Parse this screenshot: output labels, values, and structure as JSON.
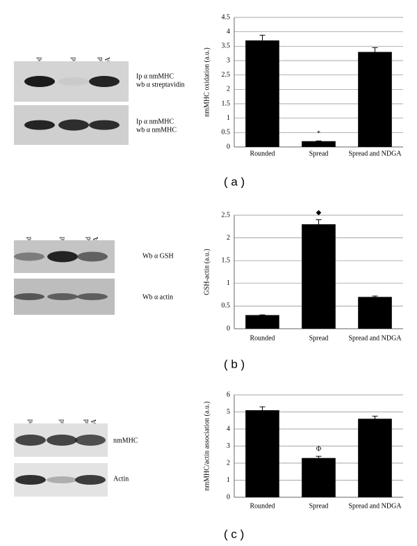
{
  "chart_data": [
    {
      "type": "bar",
      "panel_label": "( a )",
      "y_label": "nmMHC oxidation (a.u.)",
      "categories": [
        "Rounded",
        "Spread",
        "Spread and NDGA"
      ],
      "values": [
        3.7,
        0.2,
        3.3
      ],
      "errors": [
        0.18,
        0.01,
        0.15
      ],
      "color": "#000000",
      "annotations": [
        null,
        "*",
        null
      ],
      "ylim": [
        0,
        4.5
      ],
      "yticks": [
        0,
        0.5,
        1,
        1.5,
        2,
        2.5,
        3,
        3.5,
        4,
        4.5
      ],
      "grid": true
    },
    {
      "type": "bar",
      "panel_label": "( b )",
      "y_label": "GSH-actin (a.u.)",
      "categories": [
        "Rounded",
        "Spread",
        "Spread and NDGA"
      ],
      "values": [
        0.3,
        2.3,
        0.7
      ],
      "errors": [
        0.005,
        0.1,
        0.02
      ],
      "color": "#000000",
      "annotations": [
        null,
        "◆",
        null
      ],
      "ylim": [
        0,
        2.5
      ],
      "yticks": [
        0,
        0.5,
        1,
        1.5,
        2,
        2.5
      ],
      "grid": true
    },
    {
      "type": "bar",
      "panel_label": "( c )",
      "y_label": "nmMHC/actin association (a.u.)",
      "categories": [
        "Rounded",
        "Spread",
        "Spread and NDGA"
      ],
      "values": [
        5.1,
        2.3,
        4.6
      ],
      "errors": [
        0.2,
        0.1,
        0.15
      ],
      "color": "#000000",
      "annotations": [
        null,
        "Φ",
        null
      ],
      "ylim": [
        0,
        6
      ],
      "yticks": [
        0,
        1,
        2,
        3,
        4,
        5,
        6
      ],
      "grid": true
    }
  ],
  "blots": [
    {
      "lanes": [
        [
          "Rounded"
        ],
        [
          "Spread"
        ],
        [
          "Spread",
          "+ NDGA"
        ]
      ],
      "rows": [
        [
          "Ip α nmMHC",
          "wb α streptavidin"
        ],
        [
          "Ip α nmMHC",
          "wb α nmMHC"
        ]
      ]
    },
    {
      "lanes": [
        [
          "Rounded"
        ],
        [
          "Spread"
        ],
        [
          "Spread",
          "+ NDGA"
        ]
      ],
      "rows": [
        [
          "Wb α GSH"
        ],
        [
          "Wb α actin"
        ]
      ]
    },
    {
      "lanes": [
        [
          "Rounded"
        ],
        [
          "Spread"
        ],
        [
          "Spread",
          "+ NDGA"
        ]
      ],
      "rows": [
        [
          "nmMHC"
        ],
        [
          "Actin"
        ]
      ]
    }
  ]
}
